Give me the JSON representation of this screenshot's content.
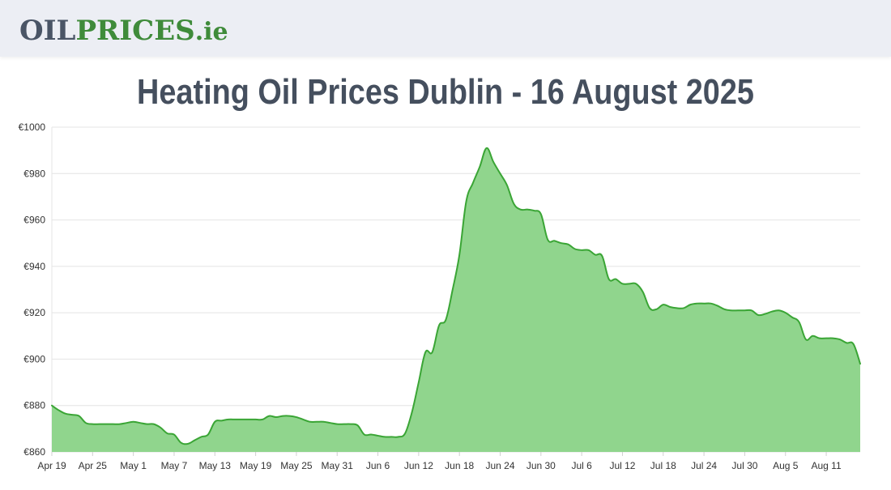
{
  "logo": {
    "oil": "OIL",
    "prices": "PRICES",
    "tld": ".ie"
  },
  "page": {
    "title": "Heating Oil Prices Dublin - 16 August 2025"
  },
  "colors": {
    "line": "#3aa535",
    "fill": "#90d58d",
    "grid": "#e4e4e4",
    "header_bg": "#eceef4"
  },
  "chart_data": {
    "type": "area",
    "title": "",
    "xlabel": "",
    "ylabel": "",
    "y_prefix": "€",
    "ylim": [
      860,
      1000
    ],
    "y_ticks": [
      860,
      880,
      900,
      920,
      940,
      960,
      980,
      1000
    ],
    "grid": true,
    "x_tick_labels": [
      "Apr 19",
      "Apr 25",
      "May 1",
      "May 7",
      "May 13",
      "May 19",
      "May 25",
      "May 31",
      "Jun 6",
      "Jun 12",
      "Jun 18",
      "Jun 24",
      "Jun 30",
      "Jul 6",
      "Jul 12",
      "Jul 18",
      "Jul 24",
      "Jul 30",
      "Aug 5",
      "Aug 11"
    ],
    "x_start": "Apr 19",
    "x_end": "Aug 16",
    "series": [
      {
        "values": [
          [
            "Apr 19",
            880
          ],
          [
            "Apr 20",
            878
          ],
          [
            "Apr 21",
            876.5
          ],
          [
            "Apr 22",
            876
          ],
          [
            "Apr 23",
            875.5
          ],
          [
            "Apr 24",
            872.5
          ],
          [
            "Apr 25",
            872
          ],
          [
            "Apr 26",
            872
          ],
          [
            "Apr 27",
            872
          ],
          [
            "Apr 28",
            872
          ],
          [
            "Apr 29",
            872
          ],
          [
            "Apr 30",
            872.5
          ],
          [
            "May 1",
            873
          ],
          [
            "May 2",
            872.5
          ],
          [
            "May 3",
            872
          ],
          [
            "May 4",
            872
          ],
          [
            "May 5",
            870.5
          ],
          [
            "May 6",
            868
          ],
          [
            "May 7",
            867.5
          ],
          [
            "May 8",
            864
          ],
          [
            "May 9",
            863.5
          ],
          [
            "May 10",
            865
          ],
          [
            "May 11",
            866.5
          ],
          [
            "May 12",
            867.5
          ],
          [
            "May 13",
            873
          ],
          [
            "May 14",
            873.5
          ],
          [
            "May 15",
            874
          ],
          [
            "May 16",
            874
          ],
          [
            "May 17",
            874
          ],
          [
            "May 18",
            874
          ],
          [
            "May 19",
            874
          ],
          [
            "May 20",
            874
          ],
          [
            "May 21",
            875.5
          ],
          [
            "May 22",
            875
          ],
          [
            "May 23",
            875.5
          ],
          [
            "May 24",
            875.5
          ],
          [
            "May 25",
            875
          ],
          [
            "May 26",
            874
          ],
          [
            "May 27",
            873
          ],
          [
            "May 28",
            873
          ],
          [
            "May 29",
            873
          ],
          [
            "May 30",
            872.5
          ],
          [
            "May 31",
            872
          ],
          [
            "Jun 1",
            872
          ],
          [
            "Jun 2",
            872
          ],
          [
            "Jun 3",
            871.5
          ],
          [
            "Jun 4",
            867.5
          ],
          [
            "Jun 5",
            867.5
          ],
          [
            "Jun 6",
            867
          ],
          [
            "Jun 7",
            866.5
          ],
          [
            "Jun 8",
            866.5
          ],
          [
            "Jun 9",
            866.5
          ],
          [
            "Jun 10",
            868
          ],
          [
            "Jun 11",
            877
          ],
          [
            "Jun 12",
            890
          ],
          [
            "Jun 13",
            903
          ],
          [
            "Jun 14",
            903
          ],
          [
            "Jun 15",
            914.5
          ],
          [
            "Jun 16",
            917
          ],
          [
            "Jun 17",
            930
          ],
          [
            "Jun 18",
            945
          ],
          [
            "Jun 19",
            968
          ],
          [
            "Jun 20",
            976
          ],
          [
            "Jun 21",
            983
          ],
          [
            "Jun 22",
            991
          ],
          [
            "Jun 23",
            985
          ],
          [
            "Jun 24",
            980
          ],
          [
            "Jun 25",
            975
          ],
          [
            "Jun 26",
            967
          ],
          [
            "Jun 27",
            964.5
          ],
          [
            "Jun 28",
            964.5
          ],
          [
            "Jun 29",
            964
          ],
          [
            "Jun 30",
            962.5
          ],
          [
            "Jul 1",
            951.5
          ],
          [
            "Jul 2",
            951
          ],
          [
            "Jul 3",
            950
          ],
          [
            "Jul 4",
            949.5
          ],
          [
            "Jul 5",
            947.5
          ],
          [
            "Jul 6",
            947
          ],
          [
            "Jul 7",
            947
          ],
          [
            "Jul 8",
            945
          ],
          [
            "Jul 9",
            944.5
          ],
          [
            "Jul 10",
            934.5
          ],
          [
            "Jul 11",
            934.5
          ],
          [
            "Jul 12",
            932.5
          ],
          [
            "Jul 13",
            932.5
          ],
          [
            "Jul 14",
            932.5
          ],
          [
            "Jul 15",
            929
          ],
          [
            "Jul 16",
            922
          ],
          [
            "Jul 17",
            921.5
          ],
          [
            "Jul 18",
            923.5
          ],
          [
            "Jul 19",
            922.5
          ],
          [
            "Jul 20",
            922
          ],
          [
            "Jul 21",
            922
          ],
          [
            "Jul 22",
            923.5
          ],
          [
            "Jul 23",
            924
          ],
          [
            "Jul 24",
            924
          ],
          [
            "Jul 25",
            924
          ],
          [
            "Jul 26",
            923
          ],
          [
            "Jul 27",
            921.5
          ],
          [
            "Jul 28",
            921
          ],
          [
            "Jul 29",
            921
          ],
          [
            "Jul 30",
            921
          ],
          [
            "Jul 31",
            921
          ],
          [
            "Aug 1",
            919
          ],
          [
            "Aug 2",
            919.5
          ],
          [
            "Aug 3",
            920.5
          ],
          [
            "Aug 4",
            921
          ],
          [
            "Aug 5",
            920
          ],
          [
            "Aug 6",
            918
          ],
          [
            "Aug 7",
            916
          ],
          [
            "Aug 8",
            908.5
          ],
          [
            "Aug 9",
            910
          ],
          [
            "Aug 10",
            909
          ],
          [
            "Aug 11",
            909
          ],
          [
            "Aug 12",
            909
          ],
          [
            "Aug 13",
            908.5
          ],
          [
            "Aug 14",
            907
          ],
          [
            "Aug 15",
            906.5
          ],
          [
            "Aug 16",
            898
          ]
        ]
      }
    ]
  }
}
